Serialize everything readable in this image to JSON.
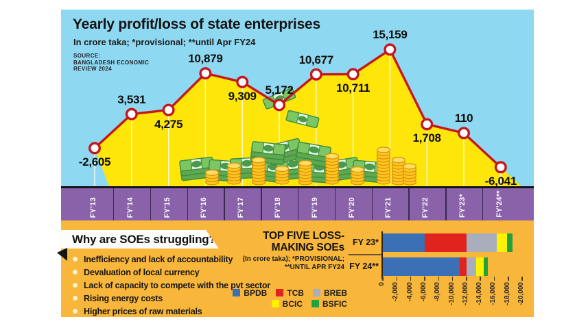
{
  "header": {
    "title": "Yearly profit/loss of state enterprises",
    "subtitle": "In crore taka; *provisional; **until Apr FY24",
    "source_line1": "SOURCE:",
    "source_line2": "BANGLADESH ECONOMIC",
    "source_line3": "REVIEW 2024"
  },
  "colors": {
    "sky": "#8FD8F1",
    "area_fill": "#FFE60A",
    "line": "#C5161D",
    "axis_band": "#8A62A9",
    "panel_orange": "#F8B63B",
    "gridline": "#FFFDE8"
  },
  "chart_data": [
    {
      "type": "line",
      "title": "Yearly profit/loss of state enterprises",
      "subtitle": "In crore taka; *provisional; **until Apr FY24",
      "source": "SOURCE: BANGLADESH ECONOMIC REVIEW 2024",
      "unit": "crore taka",
      "categories": [
        "FY'13",
        "FY'14",
        "FY'15",
        "FY'16",
        "FY'17",
        "FY'18",
        "FY'19",
        "FY'20",
        "FY'21",
        "FY'22",
        "FY'23*",
        "FY'24**"
      ],
      "values": [
        -2605,
        3531,
        4275,
        10879,
        9309,
        5172,
        10677,
        10711,
        15159,
        1708,
        110,
        -6041
      ],
      "value_labels": [
        "-2,605",
        "3,531",
        "4,275",
        "10,879",
        "9,309",
        "5,172",
        "10,677",
        "10,711",
        "15,159",
        "1,708",
        "110",
        "-6,041"
      ],
      "label_position": [
        "below",
        "above",
        "below",
        "above",
        "below",
        "above",
        "above",
        "below",
        "above",
        "below",
        "above",
        "below"
      ],
      "ylim": [
        -9500,
        22300
      ],
      "grid": "vertical-white-droplines",
      "line_color": "#C5161D",
      "area_color": "#FFE60A"
    },
    {
      "type": "bar",
      "stacked": true,
      "orientation": "horizontal",
      "title": "TOP FIVE LOSS-MAKING SOEs",
      "note": "(In crore taka); *PROVISIONAL; **UNTIL APR FY24",
      "categories": [
        "FY 23*",
        "FY 24**"
      ],
      "series": [
        {
          "name": "BPDB",
          "color": "#3B6FB6",
          "values": [
            -6000,
            -11000
          ]
        },
        {
          "name": "TCB",
          "color": "#E0231C",
          "values": [
            -6000,
            -1050
          ]
        },
        {
          "name": "BREB",
          "color": "#A9AEBC",
          "values": [
            -4400,
            -1350
          ]
        },
        {
          "name": "BCIC",
          "color": "#FFF200",
          "values": [
            -1400,
            -1100
          ]
        },
        {
          "name": "BSFIC",
          "color": "#22A23C",
          "values": [
            -850,
            -550
          ]
        }
      ],
      "xlim": [
        0,
        -20000
      ],
      "x_tick_labels": [
        "0",
        "-2,000",
        "-4,000",
        "-6,000",
        "-8,000",
        "-10,000",
        "-12,000",
        "-14,000",
        "-16,000",
        "-18,000",
        "-20,000"
      ],
      "legend_position": "bottom-left-of-bars"
    }
  ],
  "struggles": {
    "heading": "Why are SOEs struggling?",
    "items": [
      "Inefficiency and lack of accountability",
      "Devaluation of local currency",
      "Lack of capacity to compete with the pvt sector",
      "Rising energy costs",
      "Higher prices of raw materials"
    ]
  },
  "loss_panel": {
    "title_line1": "TOP FIVE LOSS-",
    "title_line2": "MAKING SOEs",
    "note_line1": "(In crore taka); *PROVISIONAL;",
    "note_line2": "**UNTIL APR FY24"
  }
}
